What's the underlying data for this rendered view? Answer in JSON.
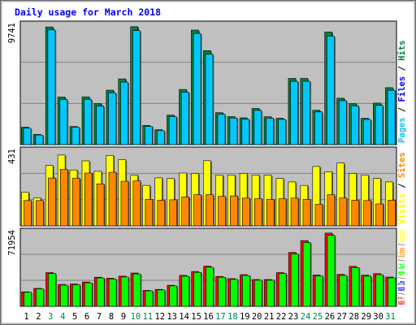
{
  "chart_data": {
    "type": "bar",
    "title": "Daily usage for March 2018",
    "categories": [
      "1",
      "2",
      "3",
      "4",
      "5",
      "6",
      "7",
      "8",
      "9",
      "10",
      "11",
      "12",
      "13",
      "14",
      "15",
      "16",
      "17",
      "18",
      "19",
      "20",
      "21",
      "22",
      "23",
      "24",
      "25",
      "26",
      "27",
      "28",
      "29",
      "30",
      "31"
    ],
    "weekend_days": [
      "3",
      "4",
      "10",
      "11",
      "17",
      "18",
      "24",
      "25",
      "31"
    ],
    "colors": {
      "pages": "#00c8ff",
      "files": "#0000ff",
      "hits": "#008040",
      "visits": "#ffff00",
      "sites": "#ff8800",
      "kb_in": "#00ff00",
      "kb_out": "#ff0000",
      "weekday_label": "#000000",
      "weekend_label": "#00804f",
      "title": "#0000ff",
      "plot_bg": "#c0c0c0",
      "frame": "#a8a8a8"
    },
    "panels": [
      {
        "name": "hits_files_pages",
        "max_label": "9741",
        "ymax": 9741,
        "right_labels": [
          {
            "text": "Pages",
            "color": "#00c8ff"
          },
          {
            "text": " / ",
            "color": "#000000"
          },
          {
            "text": "Files",
            "color": "#0000ff"
          },
          {
            "text": " / ",
            "color": "#000000"
          },
          {
            "text": "Hits",
            "color": "#008040"
          }
        ],
        "series": [
          {
            "name": "Hits",
            "color": "#008040",
            "values": [
              1430,
              840,
              9660,
              3910,
              1490,
              3920,
              3370,
              4470,
              5400,
              9680,
              1580,
              1220,
              2420,
              4530,
              9410,
              7720,
              2620,
              2300,
              2200,
              2970,
              2290,
              2170,
              5440,
              5440,
              2820,
              9250,
              3810,
              3360,
              2170,
              3410,
              4680
            ]
          },
          {
            "name": "Pages",
            "color": "#00c8ff",
            "values": [
              1350,
              790,
              9420,
              3700,
              1420,
              3700,
              3170,
              4260,
              5130,
              9360,
              1500,
              1150,
              2300,
              4310,
              9130,
              7420,
              2490,
              2180,
              2080,
              2810,
              2170,
              2070,
              5200,
              5200,
              2680,
              8910,
              3610,
              3180,
              2060,
              3230,
              4460
            ]
          }
        ]
      },
      {
        "name": "visits_sites",
        "max_label": "431",
        "ymax": 431,
        "right_labels": [
          {
            "text": "Visits",
            "color": "#ffff00"
          },
          {
            "text": " / ",
            "color": "#000000"
          },
          {
            "text": "Sites",
            "color": "#ff8800"
          }
        ],
        "series": [
          {
            "name": "Visits",
            "color": "#ffff00",
            "values": [
              195,
              163,
              352,
              413,
              326,
              379,
              318,
              410,
              386,
              296,
              236,
              280,
              276,
              308,
              306,
              380,
              296,
              296,
              306,
              296,
              296,
              276,
              256,
              236,
              346,
              315,
              366,
              306,
              296,
              276,
              256
            ]
          },
          {
            "name": "Sites",
            "color": "#ff8800",
            "values": [
              148,
              148,
              279,
              329,
              278,
              308,
              245,
              312,
              260,
              262,
              155,
              150,
              152,
              168,
              182,
              182,
              172,
              175,
              162,
              158,
              155,
              158,
              162,
              155,
              126,
              182,
              163,
              150,
              148,
              128,
              150
            ]
          }
        ]
      },
      {
        "name": "kb_in_out",
        "max_label": "71954",
        "ymax": 71954,
        "right_labels": [
          {
            "text": "KB F",
            "color": "#ff0000"
          },
          {
            "text": " / ",
            "color": "#000000"
          },
          {
            "text": "KB In",
            "color": "#0000ff"
          },
          {
            "text": " / ",
            "color": "#000000"
          },
          {
            "text": "KB Out",
            "color": "#00ff00"
          },
          {
            "text": " / ",
            "color": "#000000"
          },
          {
            "text": "Sites",
            "color": "#ff8800"
          },
          {
            "text": " / ",
            "color": "#000000"
          },
          {
            "text": "Visits",
            "color": "#ffff00"
          }
        ],
        "series": [
          {
            "name": "KB F",
            "color": "#ff0000",
            "values": [
              14200,
              17700,
              33200,
              21500,
              22000,
              23900,
              28600,
              27700,
              29700,
              32800,
              15700,
              16600,
              20700,
              30500,
              34300,
              39500,
              29400,
              27300,
              31200,
              26400,
              26400,
              33200,
              53000,
              64700,
              30800,
              72000,
              31400,
              39300,
              30600,
              32100,
              28800
            ]
          },
          {
            "name": "KB Out",
            "color": "#00ff00",
            "values": [
              13800,
              17200,
              32300,
              20900,
              21300,
              23100,
              27900,
              26900,
              28900,
              31900,
              15200,
              16100,
              20100,
              29600,
              33300,
              38400,
              28600,
              26500,
              30300,
              25700,
              25700,
              32300,
              51400,
              62800,
              29900,
              69900,
              30400,
              38100,
              29700,
              31100,
              28000
            ]
          }
        ]
      }
    ]
  }
}
